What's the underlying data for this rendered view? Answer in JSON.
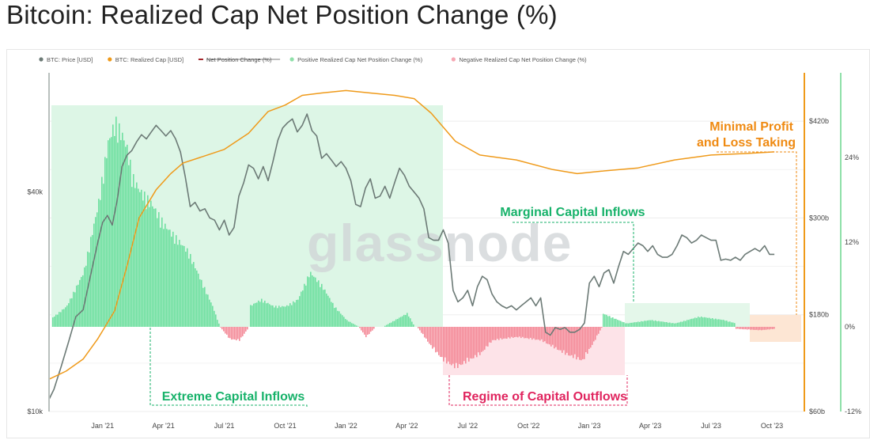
{
  "page": {
    "title": "Bitcoin: Realized Cap Net Position Change (%)"
  },
  "legend": [
    {
      "label": "BTC: Price [USD]",
      "color": "#6c7a76",
      "kind": "dot",
      "struck": false
    },
    {
      "label": "BTC: Realized Cap [USD]",
      "color": "#ef9a1a",
      "kind": "dot",
      "struck": false
    },
    {
      "label": "Net Position Change (%)",
      "color": "#a3242a",
      "kind": "line",
      "struck": true
    },
    {
      "label": "Positive Realized Cap Net Position Change (%)",
      "color": "#8fe0a9",
      "kind": "dot",
      "struck": false
    },
    {
      "label": "Negative Realized Cap Net Position Change (%)",
      "color": "#f6a7b3",
      "kind": "dot",
      "struck": false
    }
  ],
  "watermark": "glassnode",
  "annotations": {
    "extreme_inflows": "Extreme Capital Inflows",
    "outflows": "Regime of Capital Outflows",
    "marginal_inflows": "Marginal Capital Inflows",
    "minimal_pl_line1": "Minimal Profit",
    "minimal_pl_line2": "and Loss Taking"
  },
  "colors": {
    "price": "#6c7a76",
    "realized_cap": "#ef9a1a",
    "positive": "#6fe0a0",
    "negative": "#f48a98",
    "green_text": "#17b26a",
    "red_text": "#e0245e",
    "orange_text": "#ef8a12"
  },
  "chart_data": {
    "type": "line",
    "title": "Bitcoin: Realized Cap Net Position Change (%)",
    "x_tick_labels": [
      "Jan '21",
      "Apr '21",
      "Jul '21",
      "Oct '21",
      "Jan '22",
      "Apr '22",
      "Jul '22",
      "Oct '22",
      "Jan '23",
      "Apr '23",
      "Jul '23",
      "Oct '23"
    ],
    "x_tick_values": [
      2021.0,
      2021.25,
      2021.5,
      2021.75,
      2022.0,
      2022.25,
      2022.5,
      2022.75,
      2023.0,
      2023.25,
      2023.5,
      2023.75
    ],
    "xlim": [
      2020.78,
      2023.88
    ],
    "y_left": {
      "scale": "log",
      "ticks": [
        "$10k",
        "$40k"
      ],
      "tick_values": [
        10000,
        40000
      ],
      "range": [
        10000,
        85000
      ]
    },
    "y_right_cap": {
      "ticks": [
        "$60b",
        "$180b",
        "$300b",
        "$420b"
      ],
      "tick_values": [
        60,
        180,
        300,
        420
      ],
      "range": [
        60,
        480
      ]
    },
    "y_right_pct": {
      "ticks": [
        "-12%",
        "0%",
        "12%",
        "24%"
      ],
      "tick_values": [
        -12,
        0,
        12,
        24
      ],
      "range": [
        -12,
        36
      ]
    },
    "grid": true,
    "legend_position": "top-left",
    "series": [
      {
        "name": "BTC: Price [USD]",
        "axis": "y_left",
        "color": "#6c7a76",
        "x": [
          2020.78,
          2020.8,
          2020.83,
          2020.86,
          2020.89,
          2020.92,
          2020.95,
          2020.98,
          2021.0,
          2021.02,
          2021.04,
          2021.06,
          2021.08,
          2021.1,
          2021.12,
          2021.14,
          2021.16,
          2021.18,
          2021.2,
          2021.22,
          2021.24,
          2021.26,
          2021.28,
          2021.3,
          2021.32,
          2021.34,
          2021.36,
          2021.38,
          2021.4,
          2021.42,
          2021.44,
          2021.46,
          2021.48,
          2021.5,
          2021.52,
          2021.54,
          2021.56,
          2021.58,
          2021.6,
          2021.62,
          2021.64,
          2021.66,
          2021.68,
          2021.7,
          2021.72,
          2021.74,
          2021.76,
          2021.78,
          2021.8,
          2021.82,
          2021.84,
          2021.86,
          2021.88,
          2021.9,
          2021.92,
          2021.94,
          2021.96,
          2021.98,
          2022.0,
          2022.02,
          2022.04,
          2022.06,
          2022.08,
          2022.1,
          2022.12,
          2022.14,
          2022.16,
          2022.18,
          2022.2,
          2022.22,
          2022.24,
          2022.26,
          2022.28,
          2022.3,
          2022.32,
          2022.34,
          2022.36,
          2022.38,
          2022.4,
          2022.42,
          2022.44,
          2022.46,
          2022.48,
          2022.5,
          2022.52,
          2022.54,
          2022.56,
          2022.58,
          2022.6,
          2022.62,
          2022.64,
          2022.66,
          2022.68,
          2022.7,
          2022.72,
          2022.74,
          2022.76,
          2022.78,
          2022.8,
          2022.82,
          2022.84,
          2022.86,
          2022.88,
          2022.9,
          2022.92,
          2022.94,
          2022.96,
          2022.98,
          2023.0,
          2023.02,
          2023.04,
          2023.06,
          2023.08,
          2023.1,
          2023.12,
          2023.14,
          2023.16,
          2023.18,
          2023.2,
          2023.22,
          2023.24,
          2023.26,
          2023.28,
          2023.3,
          2023.32,
          2023.34,
          2023.36,
          2023.38,
          2023.4,
          2023.42,
          2023.44,
          2023.46,
          2023.48,
          2023.5,
          2023.52,
          2023.54,
          2023.56,
          2023.58,
          2023.6,
          2023.62,
          2023.64,
          2023.66,
          2023.68,
          2023.7,
          2023.72,
          2023.74,
          2023.76
        ],
        "values": [
          10800,
          11500,
          13300,
          15500,
          18200,
          19000,
          23500,
          29000,
          33000,
          34500,
          32500,
          38000,
          47000,
          50500,
          52000,
          55000,
          57500,
          56000,
          58500,
          61000,
          59000,
          57000,
          59000,
          56000,
          51500,
          44000,
          36500,
          37500,
          35500,
          36000,
          34000,
          33500,
          31500,
          33500,
          30500,
          32000,
          39000,
          42500,
          47500,
          46500,
          43500,
          47000,
          43000,
          48500,
          55500,
          60000,
          62000,
          63500,
          58500,
          61000,
          65500,
          59000,
          57000,
          49500,
          51000,
          49000,
          47000,
          48500,
          46500,
          43000,
          37000,
          36500,
          41000,
          43500,
          38500,
          39000,
          41500,
          38500,
          42500,
          46500,
          44500,
          41500,
          40000,
          38500,
          36000,
          30000,
          29500,
          29500,
          31500,
          29000,
          21500,
          20000,
          20500,
          21500,
          19500,
          22000,
          23500,
          23000,
          21000,
          20000,
          19500,
          19200,
          19500,
          19000,
          19500,
          20000,
          20500,
          19500,
          20500,
          16500,
          16200,
          17000,
          16800,
          17000,
          16500,
          16500,
          16800,
          17500,
          22500,
          23500,
          22000,
          24000,
          24500,
          22500,
          25000,
          27500,
          27000,
          28000,
          29000,
          28500,
          27500,
          28500,
          27000,
          26500,
          26500,
          27000,
          28500,
          30500,
          30000,
          29000,
          29500,
          30500,
          30000,
          29500,
          29500,
          26000,
          26200,
          26000,
          26500,
          26000,
          27000,
          27500,
          28000,
          27500,
          28500,
          27000,
          27000
        ]
      },
      {
        "name": "BTC: Realized Cap [USD]",
        "axis": "y_right_cap",
        "color": "#ef9a1a",
        "x": [
          2020.78,
          2020.85,
          2020.92,
          2020.98,
          2021.05,
          2021.1,
          2021.15,
          2021.22,
          2021.28,
          2021.33,
          2021.4,
          2021.5,
          2021.6,
          2021.68,
          2021.75,
          2021.82,
          2021.9,
          2022.0,
          2022.1,
          2022.2,
          2022.28,
          2022.35,
          2022.45,
          2022.55,
          2022.7,
          2022.85,
          2022.95,
          2023.05,
          2023.2,
          2023.35,
          2023.5,
          2023.65,
          2023.76
        ],
        "values": [
          100,
          110,
          125,
          150,
          185,
          240,
          300,
          335,
          355,
          368,
          375,
          385,
          405,
          432,
          440,
          452,
          455,
          458,
          455,
          452,
          448,
          430,
          395,
          378,
          372,
          360,
          355,
          358,
          362,
          372,
          378,
          380,
          382
        ]
      },
      {
        "name": "Positive Realized Cap Net Position Change (%)",
        "axis": "y_right_pct",
        "color": "#6fe0a0",
        "x": [
          2020.78,
          2020.85,
          2020.92,
          2020.98,
          2021.02,
          2021.05,
          2021.08,
          2021.1,
          2021.12,
          2021.15,
          2021.2,
          2021.25,
          2021.3,
          2021.35,
          2021.4,
          2021.45,
          2021.48,
          2021.5,
          2021.55,
          2021.6,
          2021.65,
          2021.7,
          2021.75,
          2021.8,
          2021.85,
          2021.9,
          2021.95,
          2022.0,
          2022.05,
          2022.1,
          2022.15,
          2022.2,
          2022.25,
          2022.28,
          2023.05,
          2023.15,
          2023.25,
          2023.35,
          2023.45,
          2023.55,
          2023.6,
          2023.65,
          2023.76
        ],
        "values": [
          1,
          3,
          8,
          18,
          27,
          30,
          28,
          26,
          22,
          20,
          18,
          15,
          13,
          11,
          7,
          3,
          0,
          0,
          0,
          3,
          4,
          3,
          3,
          4,
          8,
          6,
          3,
          1,
          0,
          0,
          0,
          1,
          2,
          0,
          2,
          0.5,
          1,
          0.5,
          1.5,
          1,
          0.5,
          0.3,
          0.3
        ]
      },
      {
        "name": "Negative Realized Cap Net Position Change (%)",
        "axis": "y_right_pct",
        "color": "#f48a98",
        "x": [
          2021.48,
          2021.52,
          2021.56,
          2021.6,
          2022.05,
          2022.08,
          2022.12,
          2022.29,
          2022.35,
          2022.4,
          2022.45,
          2022.5,
          2022.55,
          2022.6,
          2022.7,
          2022.8,
          2022.9,
          2022.97,
          2023.02,
          2023.05,
          2023.6,
          2023.7,
          2023.76
        ],
        "values": [
          0,
          -1.8,
          -2,
          0,
          0,
          -1.5,
          0,
          0,
          -3,
          -5,
          -6,
          -5,
          -4,
          -2,
          -1.5,
          -2,
          -4,
          -5,
          -2,
          0,
          -0.3,
          -0.5,
          -0.3
        ]
      }
    ],
    "regions": [
      {
        "label": "Extreme Capital Inflows",
        "x": [
          2020.78,
          2022.29
        ],
        "color": "#6fe0a0"
      },
      {
        "label": "Regime of Capital Outflows",
        "x": [
          2022.29,
          2023.05
        ],
        "color": "#f48a98"
      },
      {
        "label": "Marginal Capital Inflows",
        "x": [
          2023.05,
          2023.62
        ],
        "color": "#6fe0a0"
      },
      {
        "label": "Minimal Profit and Loss Taking",
        "x": [
          2023.62,
          2023.76
        ],
        "color": "#f2b17a"
      }
    ]
  }
}
